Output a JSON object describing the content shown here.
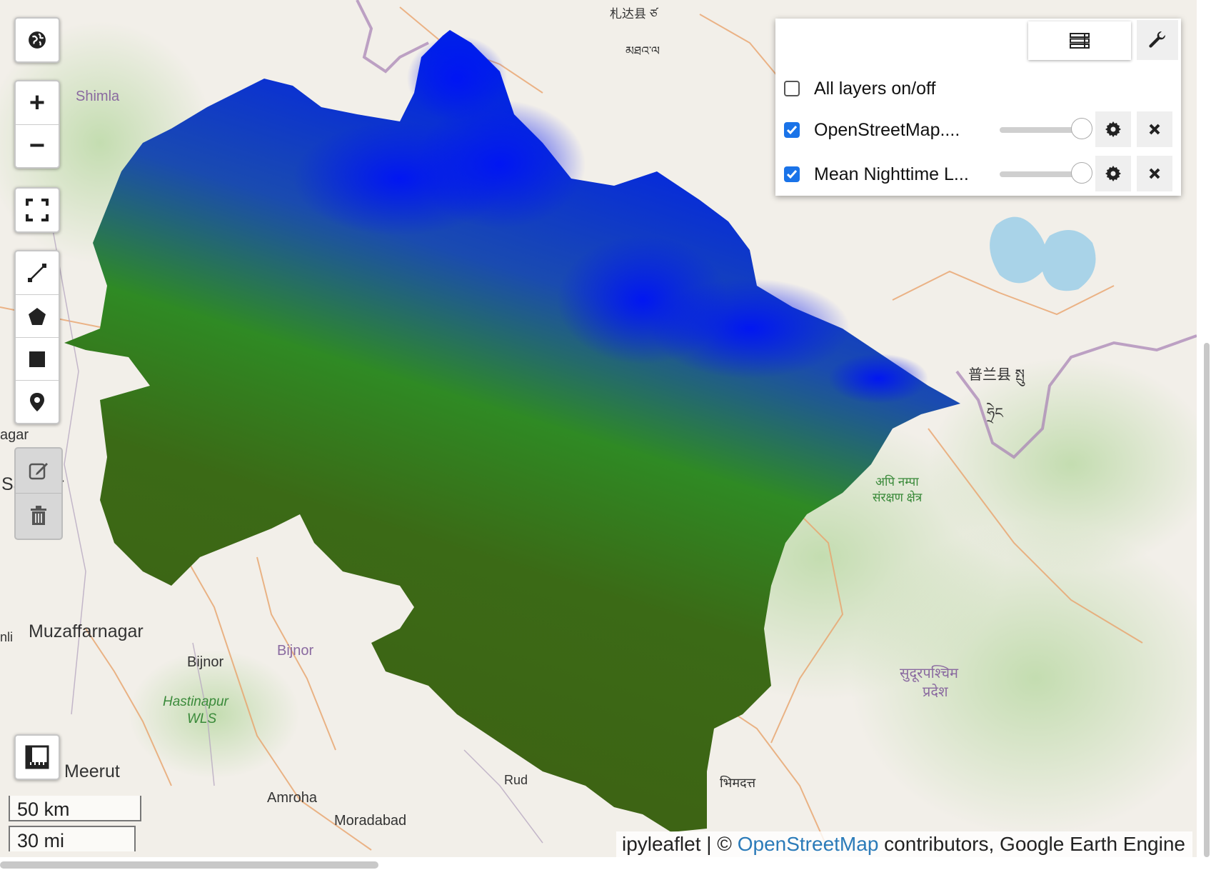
{
  "map": {
    "places": [
      {
        "key": "shimla",
        "text": "Shimla"
      },
      {
        "key": "muzaffarnagar",
        "text": "Muzaffarnagar"
      },
      {
        "key": "saharanpur",
        "text": "Sa      npur"
      },
      {
        "key": "agar",
        "text": "agar"
      },
      {
        "key": "li",
        "text": "nli"
      },
      {
        "key": "bijnor_dark",
        "text": "Bijnor"
      },
      {
        "key": "bijnor_purple",
        "text": "Bijnor"
      },
      {
        "key": "hastinapur",
        "text": "Hastinapur"
      },
      {
        "key": "wls",
        "text": "WLS"
      },
      {
        "key": "meerut",
        "text": "Meerut"
      },
      {
        "key": "amroha",
        "text": "Amroha"
      },
      {
        "key": "moradabad",
        "text": "Moradabad"
      },
      {
        "key": "rud",
        "text": "Rud"
      },
      {
        "key": "bhimdatt",
        "text": "भिमदत्त"
      },
      {
        "key": "sudurpashchim1",
        "text": "सुदूरपश्चिम"
      },
      {
        "key": "sudurpashchim2",
        "text": "प्रदेश"
      },
      {
        "key": "api_nampa1",
        "text": "अपि नम्पा"
      },
      {
        "key": "api_nampa2",
        "text": "संरक्षण क्षेत्र"
      },
      {
        "key": "burang",
        "text": "普兰县 སྤུ"
      },
      {
        "key": "tibetan",
        "text": "ཧྲེང"
      },
      {
        "key": "zanda",
        "text": "札达县 ཙ"
      },
      {
        "key": "tibetan2",
        "text": "མཐའ་ལ"
      }
    ],
    "layer_gradient": {
      "low_color": "#3f6214",
      "mid_color": "#2e8a1f",
      "high_color": "#0018f0"
    }
  },
  "controls": {
    "globe_icon": "globe-icon",
    "zoom_in": "+",
    "zoom_out": "−",
    "fullscreen_icon": "fullscreen-icon",
    "draw_tools": [
      "polyline-icon",
      "polygon-icon",
      "rectangle-icon",
      "marker-icon"
    ],
    "edit_tools": [
      "edit-icon",
      "trash-icon"
    ],
    "measure_icon": "ruler-icon"
  },
  "layers_panel": {
    "tabs": [
      "layers-icon",
      "wrench-icon"
    ],
    "all_layers": {
      "label": "All layers on/off",
      "checked": false
    },
    "layers": [
      {
        "label": "OpenStreetMap....",
        "checked": true,
        "opacity": 1.0
      },
      {
        "label": "Mean Nighttime L...",
        "checked": true,
        "opacity": 1.0
      }
    ]
  },
  "scale": {
    "metric": "50 km",
    "imperial": "30 mi"
  },
  "attribution": {
    "prefix": "ipyleaflet | © ",
    "link": "OpenStreetMap",
    "suffix": " contributors, Google Earth Engine"
  }
}
